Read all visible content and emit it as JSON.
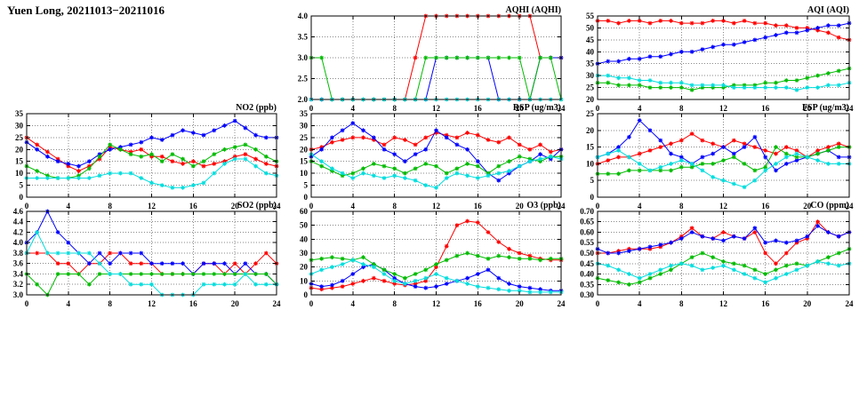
{
  "page_title": "Yuen Long, 20211013−20211016",
  "x_hours": [
    0,
    1,
    2,
    3,
    4,
    5,
    6,
    7,
    8,
    9,
    10,
    11,
    12,
    13,
    14,
    15,
    16,
    17,
    18,
    19,
    20,
    21,
    22,
    23,
    24
  ],
  "series_colors": {
    "red": "#ff0000",
    "blue": "#0000ff",
    "green": "#00bb00",
    "cyan": "#00dddd"
  },
  "chart_data": [
    {
      "id": "aqhi",
      "type": "line",
      "title": "AQHI (AQHI)",
      "xlim": [
        0,
        24
      ],
      "xtick_step": 4,
      "ylim": [
        2.0,
        4.0
      ],
      "ytick_step": 0.5,
      "ydecimals": 1,
      "grid": true,
      "series": [
        {
          "name": "red",
          "color": "#ff0000",
          "values": [
            2,
            2,
            2,
            2,
            2,
            2,
            2,
            2,
            2,
            2,
            3,
            4,
            4,
            4,
            4,
            4,
            4,
            4,
            4,
            4,
            4,
            4,
            3,
            3,
            3
          ]
        },
        {
          "name": "blue",
          "color": "#0000ff",
          "values": [
            2,
            2,
            2,
            2,
            2,
            2,
            2,
            2,
            2,
            2,
            2,
            2,
            3,
            3,
            3,
            3,
            3,
            3,
            2,
            2,
            2,
            2,
            3,
            3,
            3
          ]
        },
        {
          "name": "green",
          "color": "#00bb00",
          "values": [
            3,
            3,
            2,
            2,
            2,
            2,
            2,
            2,
            2,
            2,
            2,
            3,
            3,
            3,
            3,
            3,
            3,
            3,
            3,
            3,
            3,
            2,
            3,
            3,
            2
          ]
        },
        {
          "name": "cyan",
          "color": "#00dddd",
          "values": [
            2,
            2,
            2,
            2,
            2,
            2,
            2,
            2,
            2,
            2,
            2,
            2,
            2,
            2,
            2,
            2,
            2,
            2,
            2,
            2,
            2,
            2,
            2,
            2,
            2
          ]
        }
      ]
    },
    {
      "id": "aqi",
      "type": "line",
      "title": "AQI (AQI)",
      "xlim": [
        0,
        24
      ],
      "xtick_step": 4,
      "ylim": [
        20,
        55
      ],
      "ytick_step": 5,
      "ydecimals": 0,
      "grid": true,
      "series": [
        {
          "name": "red",
          "color": "#ff0000",
          "values": [
            53,
            53,
            52,
            53,
            53,
            52,
            53,
            53,
            52,
            52,
            52,
            53,
            53,
            52,
            53,
            52,
            52,
            51,
            51,
            50,
            50,
            49,
            48,
            46,
            45
          ]
        },
        {
          "name": "blue",
          "color": "#0000ff",
          "values": [
            35,
            36,
            36,
            37,
            37,
            38,
            38,
            39,
            40,
            40,
            41,
            42,
            43,
            43,
            44,
            45,
            46,
            47,
            48,
            48,
            49,
            50,
            51,
            51,
            52
          ]
        },
        {
          "name": "green",
          "color": "#00bb00",
          "values": [
            27,
            27,
            26,
            26,
            26,
            25,
            25,
            25,
            25,
            24,
            25,
            25,
            25,
            26,
            26,
            26,
            27,
            27,
            28,
            28,
            29,
            30,
            31,
            32,
            33
          ]
        },
        {
          "name": "cyan",
          "color": "#00dddd",
          "values": [
            30,
            30,
            29,
            29,
            28,
            28,
            27,
            27,
            27,
            26,
            26,
            26,
            26,
            25,
            25,
            25,
            25,
            25,
            25,
            24,
            25,
            25,
            26,
            26,
            27
          ]
        }
      ]
    },
    {
      "id": "no2",
      "type": "line",
      "title": "NO2 (ppb)",
      "xlim": [
        0,
        24
      ],
      "xtick_step": 4,
      "ylim": [
        0,
        35
      ],
      "ytick_step": 5,
      "ydecimals": 0,
      "grid": true,
      "series": [
        {
          "name": "red",
          "color": "#ff0000",
          "values": [
            25,
            22,
            19,
            16,
            13,
            11,
            13,
            16,
            21,
            20,
            19,
            20,
            17,
            17,
            15,
            14,
            15,
            13,
            14,
            15,
            17,
            18,
            16,
            14,
            13
          ]
        },
        {
          "name": "blue",
          "color": "#0000ff",
          "values": [
            23,
            20,
            17,
            15,
            14,
            13,
            15,
            18,
            20,
            21,
            22,
            23,
            25,
            24,
            26,
            28,
            27,
            26,
            28,
            30,
            32,
            29,
            26,
            25,
            25
          ]
        },
        {
          "name": "green",
          "color": "#00bb00",
          "values": [
            13,
            11,
            9,
            8,
            8,
            9,
            12,
            17,
            22,
            20,
            18,
            17,
            18,
            15,
            18,
            16,
            13,
            15,
            18,
            20,
            21,
            22,
            20,
            17,
            15
          ]
        },
        {
          "name": "cyan",
          "color": "#00dddd",
          "values": [
            8,
            8,
            8,
            8,
            8,
            8,
            8,
            9,
            10,
            10,
            10,
            8,
            6,
            5,
            4,
            4,
            5,
            6,
            10,
            14,
            16,
            16,
            13,
            10,
            9
          ]
        }
      ]
    },
    {
      "id": "rsp",
      "type": "line",
      "title": "RSP (ug/m3)",
      "xlim": [
        0,
        24
      ],
      "xtick_step": 4,
      "ylim": [
        0,
        35
      ],
      "ytick_step": 5,
      "ydecimals": 0,
      "grid": true,
      "series": [
        {
          "name": "red",
          "color": "#ff0000",
          "values": [
            20,
            21,
            23,
            24,
            25,
            25,
            24,
            22,
            25,
            24,
            22,
            25,
            27,
            26,
            25,
            27,
            26,
            24,
            23,
            25,
            22,
            20,
            22,
            19,
            20
          ]
        },
        {
          "name": "blue",
          "color": "#0000ff",
          "values": [
            17,
            20,
            25,
            28,
            31,
            28,
            25,
            20,
            18,
            15,
            18,
            20,
            28,
            25,
            22,
            20,
            15,
            10,
            7,
            10,
            13,
            15,
            18,
            16,
            20
          ]
        },
        {
          "name": "green",
          "color": "#00bb00",
          "values": [
            15,
            13,
            11,
            9,
            10,
            12,
            14,
            13,
            12,
            10,
            12,
            14,
            13,
            10,
            12,
            14,
            13,
            10,
            13,
            15,
            17,
            16,
            15,
            17,
            17
          ]
        },
        {
          "name": "cyan",
          "color": "#00dddd",
          "values": [
            18,
            15,
            12,
            10,
            8,
            10,
            9,
            8,
            9,
            8,
            7,
            5,
            4,
            8,
            10,
            9,
            8,
            9,
            10,
            11,
            13,
            15,
            16,
            17,
            16
          ]
        }
      ]
    },
    {
      "id": "fsp",
      "type": "line",
      "title": "FSP (ug/m3)",
      "xlim": [
        0,
        24
      ],
      "xtick_step": 4,
      "ylim": [
        0,
        25
      ],
      "ytick_step": 5,
      "ydecimals": 0,
      "grid": true,
      "series": [
        {
          "name": "red",
          "color": "#ff0000",
          "values": [
            10,
            11,
            12,
            12,
            13,
            14,
            15,
            16,
            17,
            19,
            17,
            16,
            15,
            17,
            16,
            15,
            14,
            13,
            15,
            14,
            12,
            14,
            15,
            16,
            15
          ]
        },
        {
          "name": "blue",
          "color": "#0000ff",
          "values": [
            12,
            13,
            15,
            18,
            23,
            20,
            17,
            13,
            12,
            10,
            12,
            13,
            15,
            13,
            15,
            18,
            12,
            8,
            10,
            11,
            12,
            13,
            14,
            12,
            12
          ]
        },
        {
          "name": "green",
          "color": "#00bb00",
          "values": [
            7,
            7,
            7,
            8,
            8,
            8,
            8,
            8,
            9,
            9,
            10,
            10,
            11,
            12,
            10,
            8,
            9,
            15,
            13,
            12,
            12,
            13,
            14,
            15,
            15
          ]
        },
        {
          "name": "cyan",
          "color": "#00dddd",
          "values": [
            12,
            13,
            14,
            12,
            10,
            8,
            9,
            10,
            11,
            10,
            8,
            6,
            5,
            4,
            3,
            5,
            8,
            10,
            12,
            13,
            12,
            11,
            10,
            10,
            10
          ]
        }
      ]
    },
    {
      "id": "so2",
      "type": "line",
      "title": "SO2 (ppb)",
      "xlim": [
        0,
        24
      ],
      "xtick_step": 4,
      "ylim": [
        3.0,
        4.6
      ],
      "ytick_step": 0.2,
      "ydecimals": 1,
      "grid": true,
      "series": [
        {
          "name": "red",
          "color": "#ff0000",
          "values": [
            3.8,
            3.8,
            3.8,
            3.6,
            3.6,
            3.4,
            3.6,
            3.6,
            3.8,
            3.8,
            3.6,
            3.6,
            3.6,
            3.4,
            3.4,
            3.4,
            3.4,
            3.6,
            3.6,
            3.4,
            3.6,
            3.4,
            3.6,
            3.8,
            3.6
          ]
        },
        {
          "name": "blue",
          "color": "#0000ff",
          "values": [
            4.0,
            4.2,
            4.6,
            4.2,
            4.0,
            3.8,
            3.6,
            3.8,
            3.6,
            3.8,
            3.8,
            3.8,
            3.6,
            3.6,
            3.6,
            3.6,
            3.4,
            3.6,
            3.6,
            3.6,
            3.4,
            3.6,
            3.4,
            3.4,
            3.2
          ]
        },
        {
          "name": "green",
          "color": "#00bb00",
          "values": [
            3.4,
            3.2,
            3.0,
            3.4,
            3.4,
            3.4,
            3.2,
            3.4,
            3.4,
            3.4,
            3.4,
            3.4,
            3.4,
            3.4,
            3.4,
            3.4,
            3.4,
            3.4,
            3.4,
            3.4,
            3.4,
            3.4,
            3.4,
            3.4,
            3.2
          ]
        },
        {
          "name": "cyan",
          "color": "#00dddd",
          "values": [
            3.8,
            4.2,
            3.8,
            3.8,
            3.8,
            3.8,
            3.8,
            3.6,
            3.4,
            3.4,
            3.2,
            3.2,
            3.2,
            3.0,
            3.0,
            3.0,
            3.0,
            3.2,
            3.2,
            3.2,
            3.2,
            3.4,
            3.2,
            3.2,
            3.2
          ]
        }
      ]
    },
    {
      "id": "o3",
      "type": "line",
      "title": "O3 (ppb)",
      "xlim": [
        0,
        24
      ],
      "xtick_step": 4,
      "ylim": [
        0,
        60
      ],
      "ytick_step": 10,
      "ydecimals": 0,
      "grid": true,
      "series": [
        {
          "name": "red",
          "color": "#ff0000",
          "values": [
            5,
            4,
            5,
            6,
            8,
            10,
            12,
            10,
            8,
            7,
            8,
            10,
            20,
            35,
            50,
            53,
            52,
            45,
            38,
            33,
            30,
            28,
            26,
            25,
            25
          ]
        },
        {
          "name": "blue",
          "color": "#0000ff",
          "values": [
            8,
            6,
            7,
            10,
            15,
            20,
            22,
            18,
            12,
            8,
            6,
            5,
            6,
            8,
            10,
            12,
            15,
            18,
            12,
            8,
            6,
            5,
            4,
            3,
            3
          ]
        },
        {
          "name": "green",
          "color": "#00bb00",
          "values": [
            25,
            26,
            27,
            26,
            25,
            27,
            22,
            18,
            15,
            12,
            15,
            18,
            22,
            25,
            28,
            30,
            28,
            26,
            28,
            27,
            26,
            26,
            25,
            26,
            26
          ]
        },
        {
          "name": "cyan",
          "color": "#00dddd",
          "values": [
            15,
            18,
            20,
            22,
            25,
            22,
            20,
            15,
            10,
            8,
            10,
            12,
            15,
            12,
            10,
            8,
            6,
            5,
            4,
            3,
            3,
            2,
            2,
            2,
            2
          ]
        }
      ]
    },
    {
      "id": "co",
      "type": "line",
      "title": "CO (ppm)",
      "xlim": [
        0,
        24
      ],
      "xtick_step": 4,
      "ylim": [
        0.3,
        0.7
      ],
      "ytick_step": 0.05,
      "ydecimals": 2,
      "grid": true,
      "series": [
        {
          "name": "red",
          "color": "#ff0000",
          "values": [
            0.5,
            0.5,
            0.51,
            0.52,
            0.52,
            0.52,
            0.53,
            0.55,
            0.58,
            0.62,
            0.58,
            0.57,
            0.6,
            0.58,
            0.57,
            0.6,
            0.5,
            0.45,
            0.5,
            0.55,
            0.57,
            0.65,
            0.6,
            0.58,
            0.6
          ]
        },
        {
          "name": "blue",
          "color": "#0000ff",
          "values": [
            0.52,
            0.5,
            0.5,
            0.51,
            0.52,
            0.53,
            0.54,
            0.55,
            0.57,
            0.6,
            0.58,
            0.57,
            0.56,
            0.58,
            0.57,
            0.62,
            0.55,
            0.56,
            0.55,
            0.56,
            0.58,
            0.63,
            0.6,
            0.58,
            0.6
          ]
        },
        {
          "name": "green",
          "color": "#00bb00",
          "values": [
            0.38,
            0.37,
            0.36,
            0.35,
            0.36,
            0.38,
            0.4,
            0.42,
            0.45,
            0.48,
            0.5,
            0.48,
            0.46,
            0.45,
            0.44,
            0.42,
            0.4,
            0.42,
            0.44,
            0.45,
            0.44,
            0.46,
            0.48,
            0.5,
            0.52
          ]
        },
        {
          "name": "cyan",
          "color": "#00dddd",
          "values": [
            0.45,
            0.44,
            0.42,
            0.4,
            0.38,
            0.4,
            0.42,
            0.44,
            0.45,
            0.44,
            0.42,
            0.43,
            0.44,
            0.42,
            0.4,
            0.38,
            0.36,
            0.38,
            0.4,
            0.42,
            0.44,
            0.46,
            0.45,
            0.44,
            0.45
          ]
        }
      ]
    }
  ]
}
